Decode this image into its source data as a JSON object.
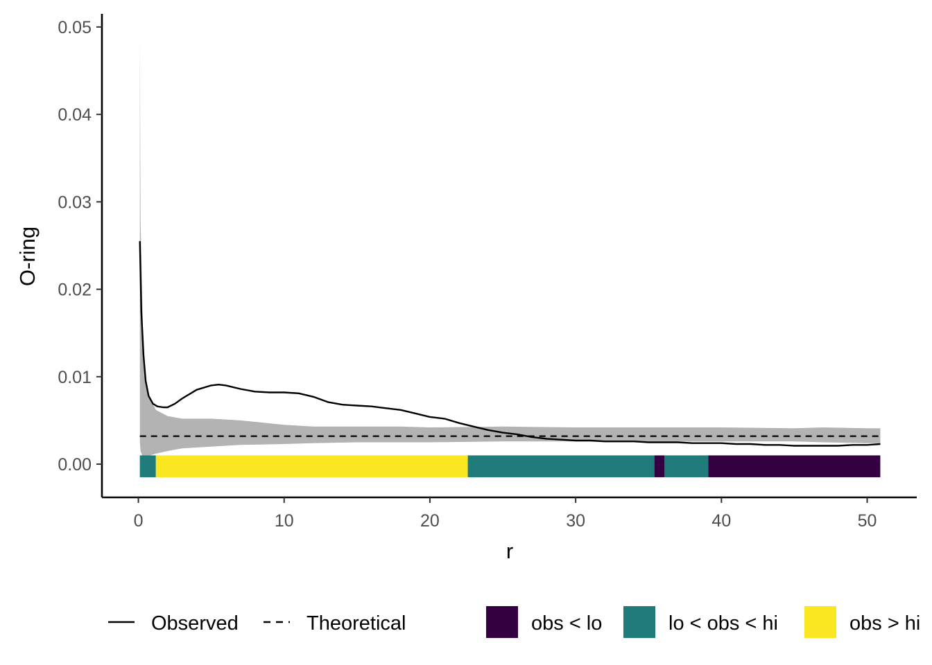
{
  "chart_data": {
    "type": "line",
    "xlabel": "r",
    "ylabel": "O-ring",
    "xlim": [
      -2.5,
      53.4
    ],
    "ylim": [
      -0.0038,
      0.0515
    ],
    "x_ticks": [
      0,
      10,
      20,
      30,
      40,
      50
    ],
    "y_ticks": [
      0.0,
      0.01,
      0.02,
      0.03,
      0.04,
      0.05
    ],
    "x_tick_labels": [
      "0",
      "10",
      "20",
      "30",
      "40",
      "50"
    ],
    "y_tick_labels": [
      "0.00",
      "0.01",
      "0.02",
      "0.03",
      "0.04",
      "0.05"
    ],
    "grid": false,
    "legend_position": "bottom",
    "series": [
      {
        "name": "Observed",
        "linetype": "solid",
        "color": "#000000",
        "x": [
          0.1,
          0.2,
          0.35,
          0.5,
          0.7,
          1.0,
          1.3,
          1.7,
          2.0,
          2.5,
          3.0,
          4.0,
          5.0,
          5.5,
          6.0,
          7.0,
          8.0,
          9.0,
          10.0,
          11.0,
          12.0,
          13.0,
          14.0,
          15.0,
          16.0,
          17.0,
          18.0,
          19.0,
          20.0,
          21.0,
          22.0,
          23.0,
          24.0,
          25.0,
          26.0,
          27.0,
          28.0,
          29.0,
          30.0,
          31.0,
          32.0,
          33.0,
          34.0,
          35.0,
          36.0,
          37.0,
          38.0,
          39.0,
          40.0,
          41.0,
          42.0,
          43.0,
          44.0,
          45.0,
          46.0,
          47.0,
          48.0,
          49.0,
          50.0,
          50.9
        ],
        "y": [
          0.0255,
          0.0175,
          0.0125,
          0.0095,
          0.0078,
          0.0069,
          0.0066,
          0.0065,
          0.0065,
          0.0069,
          0.0075,
          0.0085,
          0.009,
          0.0091,
          0.009,
          0.0086,
          0.0083,
          0.0082,
          0.0082,
          0.0081,
          0.0077,
          0.0071,
          0.0068,
          0.0067,
          0.0066,
          0.0064,
          0.0062,
          0.0058,
          0.0054,
          0.0052,
          0.0047,
          0.0043,
          0.0039,
          0.0036,
          0.0034,
          0.0031,
          0.0029,
          0.0028,
          0.0027,
          0.0027,
          0.0026,
          0.0026,
          0.0026,
          0.0025,
          0.0025,
          0.0025,
          0.0024,
          0.0024,
          0.0024,
          0.0023,
          0.0023,
          0.0022,
          0.0022,
          0.0021,
          0.0021,
          0.0021,
          0.0021,
          0.0022,
          0.0022,
          0.0023
        ]
      },
      {
        "name": "Theoretical",
        "linetype": "dashed",
        "color": "#000000",
        "x": [
          0.1,
          50.9
        ],
        "y": [
          0.0032,
          0.0032
        ]
      }
    ],
    "envelope": {
      "color": "#b3b3b3",
      "x": [
        0.1,
        0.15,
        0.3,
        0.5,
        0.8,
        1.2,
        2.0,
        3.0,
        5.0,
        7.0,
        10.0,
        12.0,
        15.0,
        18.0,
        20.0,
        25.0,
        30.0,
        35.0,
        40.0,
        45.0,
        47.0,
        50.0,
        50.9
      ],
      "lo": [
        0.0025,
        0.0015,
        0.0008,
        0.0008,
        0.001,
        0.0012,
        0.0015,
        0.0018,
        0.002,
        0.0022,
        0.0023,
        0.0024,
        0.0025,
        0.0025,
        0.0025,
        0.0026,
        0.0026,
        0.0026,
        0.0026,
        0.0026,
        0.0025,
        0.0024,
        0.0024
      ],
      "hi": [
        0.0488,
        0.028,
        0.016,
        0.0095,
        0.0075,
        0.0062,
        0.0055,
        0.0052,
        0.0052,
        0.005,
        0.0045,
        0.0043,
        0.0043,
        0.0043,
        0.0042,
        0.0043,
        0.0042,
        0.0042,
        0.0042,
        0.0041,
        0.0042,
        0.0041,
        0.0041
      ]
    },
    "status_bar": {
      "y_min": -0.0015,
      "y_max": 0.001,
      "segments": [
        {
          "from": 0.1,
          "to": 1.2,
          "category": "lo < obs < hi"
        },
        {
          "from": 1.2,
          "to": 22.6,
          "category": "obs > hi"
        },
        {
          "from": 22.6,
          "to": 35.4,
          "category": "lo < obs < hi"
        },
        {
          "from": 35.4,
          "to": 36.1,
          "category": "obs < lo"
        },
        {
          "from": 36.1,
          "to": 39.1,
          "category": "lo < obs < hi"
        },
        {
          "from": 39.1,
          "to": 50.9,
          "category": "obs < lo"
        }
      ]
    },
    "fill_legend": [
      {
        "label": "obs < lo",
        "color": "#340042"
      },
      {
        "label": "lo < obs < hi",
        "color": "#1f7c7b"
      },
      {
        "label": "obs > hi",
        "color": "#fbe622"
      }
    ]
  }
}
